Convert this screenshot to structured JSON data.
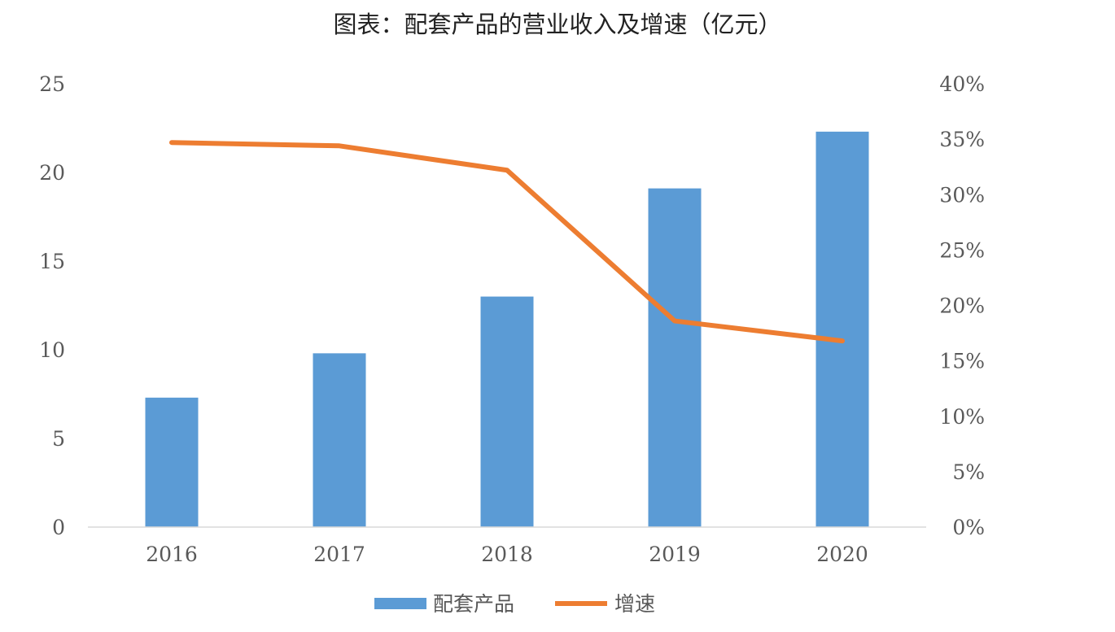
{
  "chart_data": {
    "type": "bar+line",
    "title": "图表：配套产品的营业收入及增速（亿元）",
    "categories": [
      "2016",
      "2017",
      "2018",
      "2019",
      "2020"
    ],
    "series": [
      {
        "name": "配套产品",
        "type": "bar",
        "axis": "left",
        "color": "#5B9BD5",
        "values": [
          7.3,
          9.8,
          13.0,
          19.1,
          22.3
        ]
      },
      {
        "name": "增速",
        "type": "line",
        "axis": "right",
        "color": "#ED7D31",
        "values": [
          34.7,
          34.4,
          32.2,
          18.6,
          16.8
        ]
      }
    ],
    "left_axis": {
      "ylim": [
        0,
        25
      ],
      "ticks": [
        "0",
        "5",
        "10",
        "15",
        "20",
        "25"
      ]
    },
    "right_axis": {
      "ylim": [
        0,
        40
      ],
      "ticks": [
        "0%",
        "5%",
        "10%",
        "15%",
        "20%",
        "25%",
        "30%",
        "35%",
        "40%"
      ]
    },
    "grid": false,
    "legend": "bottom"
  }
}
